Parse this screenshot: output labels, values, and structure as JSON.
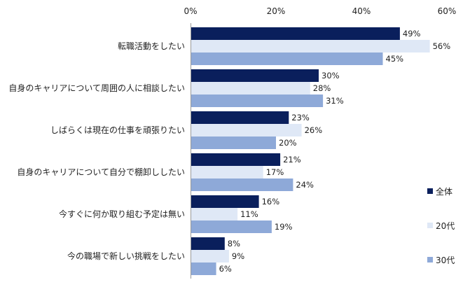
{
  "chart_data": {
    "type": "bar",
    "orientation": "horizontal",
    "categories": [
      "転職活動をしたい",
      "自身のキャリアについて周囲の人に相談したい",
      "しばらくは現在の仕事を頑張りたい",
      "自身のキャリアについて自分で棚卸ししたい",
      "今すぐに何か取り組む予定は無い",
      "今の職場で新しい挑戦をしたい"
    ],
    "series": [
      {
        "name": "全体",
        "color": "#0a1f5c",
        "values": [
          49,
          30,
          23,
          21,
          16,
          8
        ]
      },
      {
        "name": "20代",
        "color": "#dfe8f6",
        "values": [
          56,
          28,
          26,
          17,
          11,
          9
        ]
      },
      {
        "name": "30代",
        "color": "#8ea9d8",
        "values": [
          45,
          31,
          20,
          24,
          19,
          6
        ]
      }
    ],
    "xlim": [
      0,
      60
    ],
    "xticks": [
      0,
      20,
      40,
      60
    ],
    "tick_suffix": "%",
    "value_suffix": "%",
    "grid": false,
    "legend_position": "right"
  }
}
